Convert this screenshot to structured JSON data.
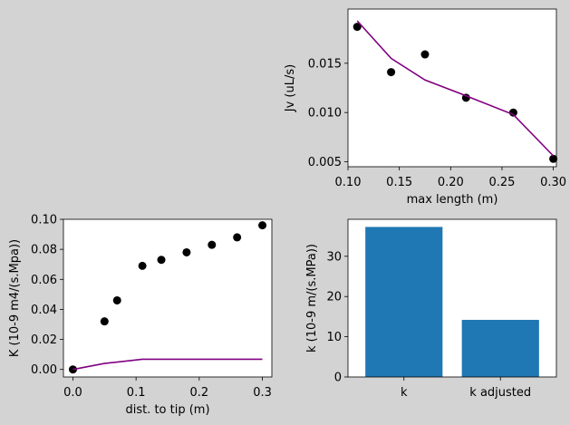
{
  "figure": {
    "background": "#d3d3d3"
  },
  "chart_data": [
    {
      "id": "jv-vs-length",
      "type": "scatter+line",
      "title": "",
      "xlabel": "max length (m)",
      "ylabel": "Jv (uL/s)",
      "xlim": [
        0.1,
        0.303
      ],
      "ylim": [
        0.0045,
        0.0205
      ],
      "xticks": [
        0.1,
        0.15,
        0.2,
        0.25,
        0.3
      ],
      "xtick_labels": [
        "0.10",
        "0.15",
        "0.20",
        "0.25",
        "0.30"
      ],
      "yticks": [
        0.005,
        0.01,
        0.015
      ],
      "ytick_labels": [
        "0.005",
        "0.010",
        "0.015"
      ],
      "grid": false,
      "series": [
        {
          "kind": "points",
          "color": "#000000",
          "x": [
            0.109,
            0.142,
            0.175,
            0.215,
            0.261,
            0.3
          ],
          "y": [
            0.0187,
            0.0141,
            0.0159,
            0.0115,
            0.01,
            0.0053
          ]
        },
        {
          "kind": "line",
          "color": "#800080",
          "x": [
            0.109,
            0.142,
            0.175,
            0.215,
            0.261,
            0.3
          ],
          "y": [
            0.0193,
            0.0155,
            0.0133,
            0.0117,
            0.0098,
            0.0056
          ]
        }
      ]
    },
    {
      "id": "K-vs-dist",
      "type": "scatter+line",
      "title": "",
      "xlabel": "dist. to tip (m)",
      "ylabel": "K (10-9 m4/(s.Mpa))",
      "xlim": [
        -0.015,
        0.315
      ],
      "ylim": [
        -0.005,
        0.1
      ],
      "xticks": [
        0.0,
        0.1,
        0.2,
        0.3
      ],
      "xtick_labels": [
        "0.0",
        "0.1",
        "0.2",
        "0.3"
      ],
      "yticks": [
        0.0,
        0.02,
        0.04,
        0.06,
        0.08,
        0.1
      ],
      "ytick_labels": [
        "0.00",
        "0.02",
        "0.04",
        "0.06",
        "0.08",
        "0.10"
      ],
      "grid": false,
      "series": [
        {
          "kind": "points",
          "color": "#000000",
          "x": [
            0.0,
            0.05,
            0.07,
            0.11,
            0.14,
            0.18,
            0.22,
            0.26,
            0.3
          ],
          "y": [
            0.0,
            0.032,
            0.046,
            0.069,
            0.073,
            0.078,
            0.083,
            0.088,
            0.096
          ]
        },
        {
          "kind": "line",
          "color": "#800080",
          "x": [
            0.0,
            0.05,
            0.11,
            0.3
          ],
          "y": [
            0.0,
            0.004,
            0.0068,
            0.0068
          ]
        }
      ]
    },
    {
      "id": "k-bars",
      "type": "bar",
      "title": "",
      "xlabel": "",
      "ylabel": "k (10-9 m/(s.MPa))",
      "categories": [
        "k",
        "k adjusted"
      ],
      "values": [
        37.3,
        14.2
      ],
      "color": "#1f77b4",
      "ylim": [
        0,
        39.2
      ],
      "yticks": [
        0,
        10,
        20,
        30
      ],
      "ytick_labels": [
        "0",
        "10",
        "20",
        "30"
      ],
      "grid": false
    }
  ]
}
